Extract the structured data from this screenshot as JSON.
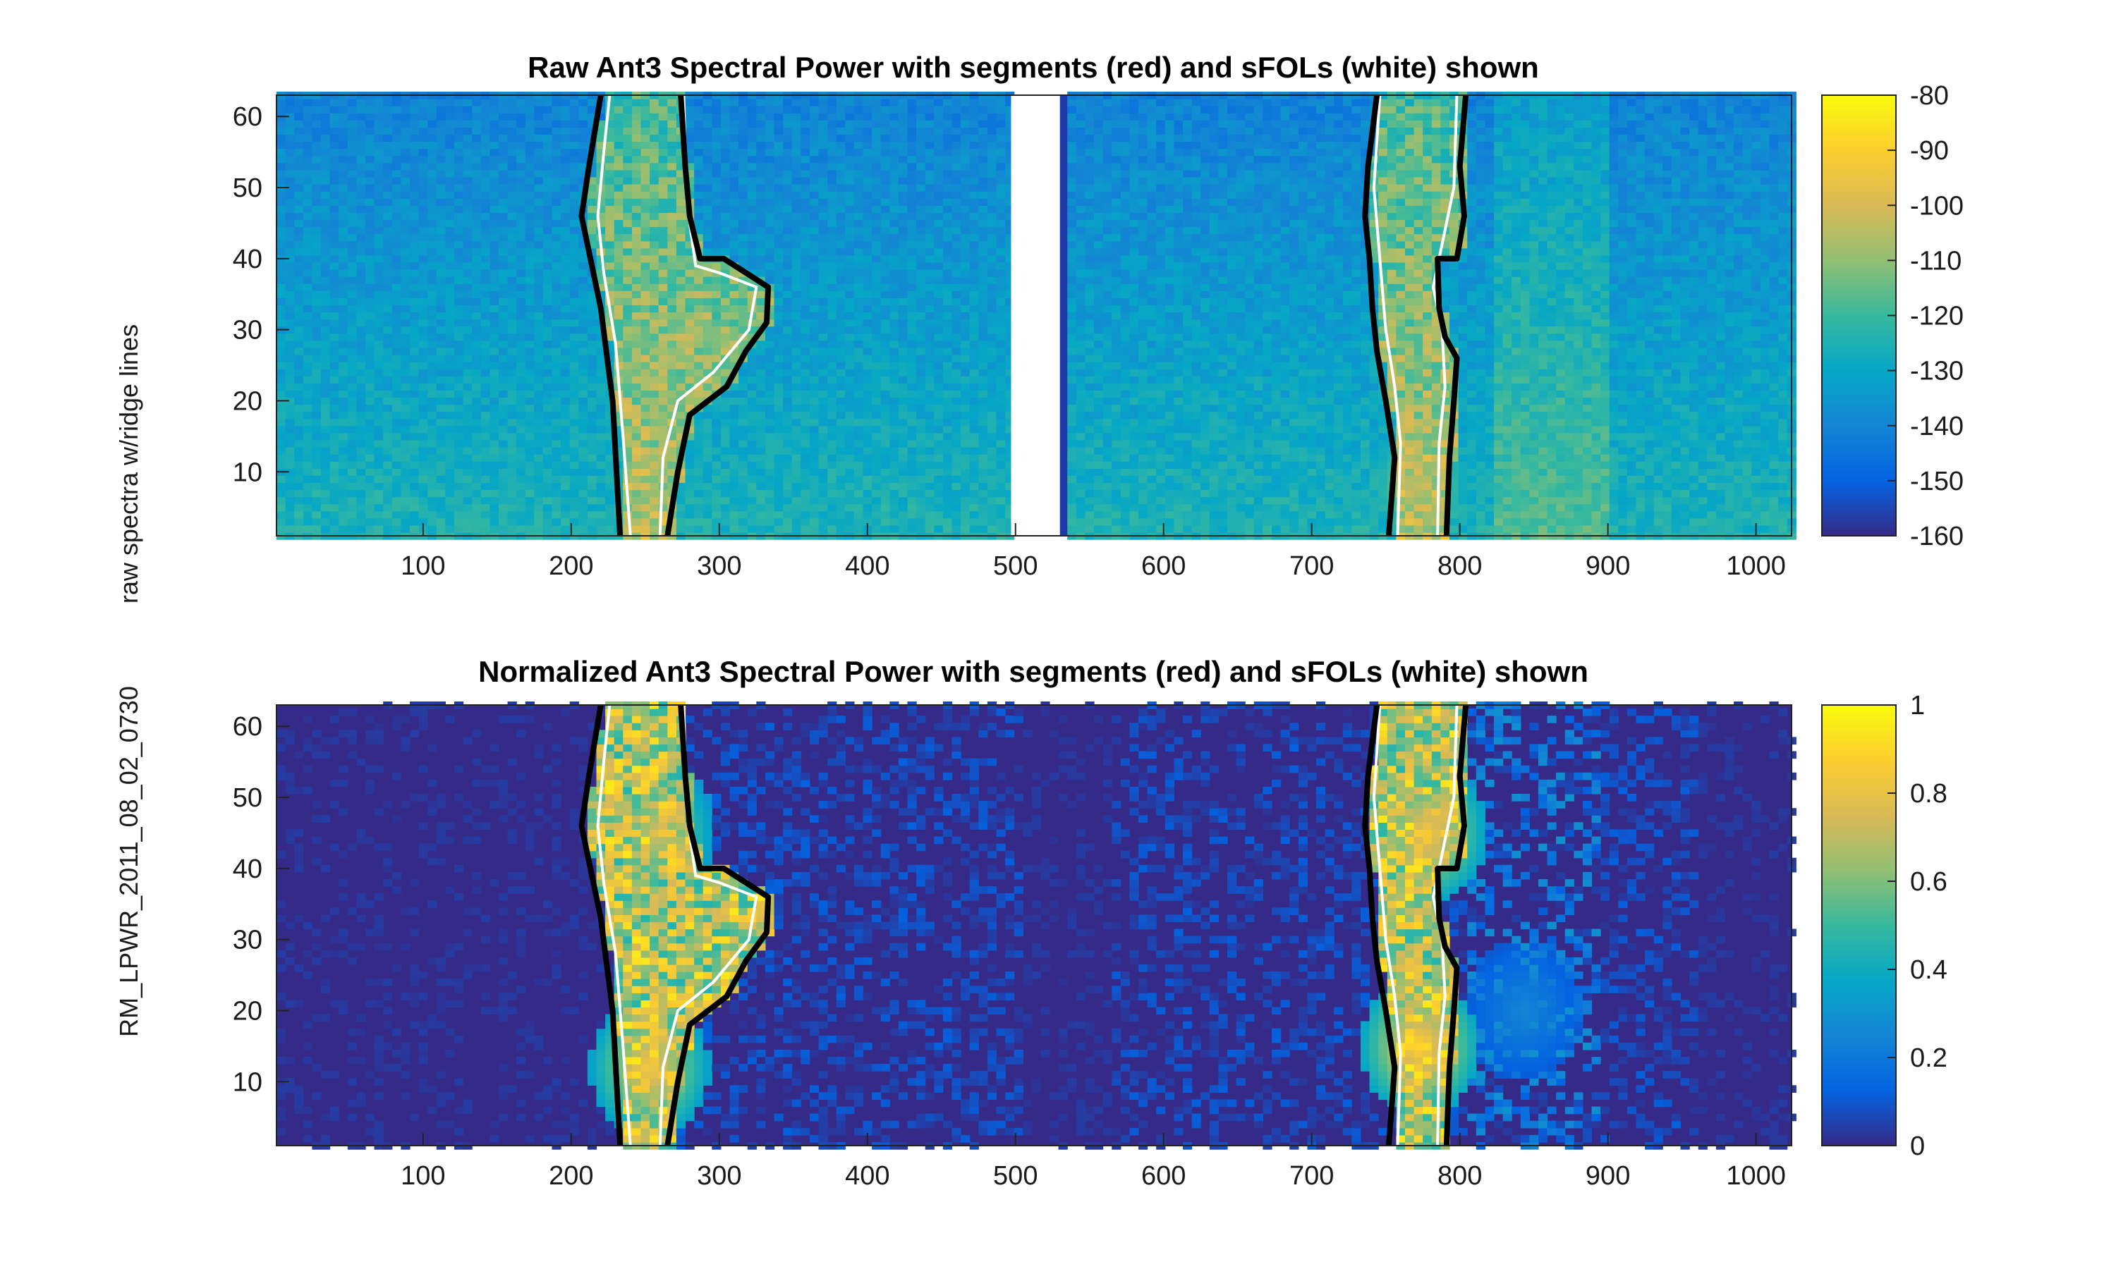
{
  "figure_ylabel": "RM_LPWR_2011_08_02_0730\nraw spectra w/ridge lines",
  "figure_ylabel_lines": [
    "RM_LPWR_2011_08_02_0730",
    "raw spectra w/ridge lines"
  ],
  "chart_data": [
    {
      "id": "raw",
      "type": "heatmap",
      "title": "Raw Ant3 Spectral Power with segments (red) and sFOLs (white) shown",
      "xlim": [
        1,
        1024
      ],
      "ylim": [
        1,
        63
      ],
      "xticks": [
        100,
        200,
        300,
        400,
        500,
        600,
        700,
        800,
        900,
        1000
      ],
      "yticks": [
        10,
        20,
        30,
        40,
        50,
        60
      ],
      "colormap": "parula",
      "colorbar": {
        "min": -160,
        "max": -80,
        "ticks": [
          -80,
          -90,
          -100,
          -110,
          -120,
          -130,
          -140,
          -150,
          -160
        ]
      },
      "gap_x": [
        497,
        530
      ],
      "segments": [
        {
          "left": [
            [
              233,
              1
            ],
            [
              228,
              20
            ],
            [
              220,
              33
            ],
            [
              213,
              40
            ],
            [
              207,
              46
            ],
            [
              212,
              53
            ],
            [
              220,
              63
            ]
          ],
          "right": [
            [
              265,
              1
            ],
            [
              272,
              10
            ],
            [
              280,
              18
            ],
            [
              305,
              22
            ],
            [
              318,
              27
            ],
            [
              332,
              31
            ],
            [
              333,
              36
            ],
            [
              318,
              38
            ],
            [
              303,
              40
            ],
            [
              287,
              40
            ],
            [
              280,
              46
            ],
            [
              277,
              53
            ],
            [
              274,
              63
            ]
          ]
        },
        {
          "left": [
            [
              752,
              1
            ],
            [
              756,
              12
            ],
            [
              750,
              20
            ],
            [
              744,
              27
            ],
            [
              741,
              33
            ],
            [
              739,
              40
            ],
            [
              736,
              46
            ],
            [
              738,
              53
            ],
            [
              744,
              63
            ]
          ],
          "right": [
            [
              791,
              1
            ],
            [
              793,
              12
            ],
            [
              796,
              20
            ],
            [
              798,
              26
            ],
            [
              790,
              29
            ],
            [
              786,
              33
            ],
            [
              785,
              40
            ],
            [
              798,
              40
            ],
            [
              803,
              46
            ],
            [
              800,
              53
            ],
            [
              804,
              63
            ]
          ]
        }
      ],
      "sfols": [
        {
          "points": [
            [
              240,
              1
            ],
            [
              235,
              15
            ],
            [
              230,
              28
            ],
            [
              222,
              38
            ],
            [
              218,
              46
            ],
            [
              222,
              55
            ],
            [
              226,
              63
            ]
          ]
        },
        {
          "points": [
            [
              260,
              1
            ],
            [
              262,
              12
            ],
            [
              272,
              20
            ],
            [
              296,
              24
            ],
            [
              320,
              30
            ],
            [
              325,
              36
            ],
            [
              300,
              38
            ],
            [
              284,
              39
            ],
            [
              278,
              48
            ],
            [
              276,
              63
            ]
          ]
        },
        {
          "points": [
            [
              758,
              1
            ],
            [
              760,
              14
            ],
            [
              756,
              22
            ],
            [
              750,
              30
            ],
            [
              746,
              40
            ],
            [
              742,
              50
            ],
            [
              746,
              63
            ]
          ]
        },
        {
          "points": [
            [
              785,
              1
            ],
            [
              786,
              14
            ],
            [
              790,
              22
            ],
            [
              788,
              30
            ],
            [
              782,
              36
            ],
            [
              788,
              42
            ],
            [
              796,
              50
            ],
            [
              798,
              63
            ]
          ]
        }
      ],
      "hotspots": [
        {
          "x": 248,
          "y": 8,
          "v": 0.58
        },
        {
          "x": 250,
          "y": 20,
          "v": 0.52
        },
        {
          "x": 770,
          "y": 8,
          "v": 0.72
        },
        {
          "x": 770,
          "y": 25,
          "v": 0.6
        },
        {
          "x": 775,
          "y": 45,
          "v": 0.5
        },
        {
          "x": 850,
          "y": 12,
          "v": 0.42
        }
      ]
    },
    {
      "id": "normalized",
      "type": "heatmap",
      "title": "Normalized Ant3 Spectral Power with segments (red) and sFOLs (white) shown",
      "xlim": [
        1,
        1024
      ],
      "ylim": [
        1,
        63
      ],
      "xticks": [
        100,
        200,
        300,
        400,
        500,
        600,
        700,
        800,
        900,
        1000
      ],
      "yticks": [
        10,
        20,
        30,
        40,
        50,
        60
      ],
      "colormap": "parula",
      "colorbar": {
        "min": 0,
        "max": 1,
        "ticks": [
          1,
          0.8,
          0.6,
          0.4,
          0.2,
          0
        ]
      },
      "segments": [
        {
          "left": [
            [
              233,
              1
            ],
            [
              228,
              20
            ],
            [
              220,
              33
            ],
            [
              213,
              40
            ],
            [
              207,
              46
            ],
            [
              212,
              53
            ],
            [
              220,
              63
            ]
          ],
          "right": [
            [
              265,
              1
            ],
            [
              272,
              10
            ],
            [
              280,
              18
            ],
            [
              305,
              22
            ],
            [
              318,
              27
            ],
            [
              332,
              31
            ],
            [
              333,
              36
            ],
            [
              318,
              38
            ],
            [
              303,
              40
            ],
            [
              287,
              40
            ],
            [
              280,
              46
            ],
            [
              277,
              53
            ],
            [
              274,
              63
            ]
          ]
        },
        {
          "left": [
            [
              752,
              1
            ],
            [
              756,
              12
            ],
            [
              750,
              20
            ],
            [
              744,
              27
            ],
            [
              741,
              33
            ],
            [
              739,
              40
            ],
            [
              736,
              46
            ],
            [
              738,
              53
            ],
            [
              744,
              63
            ]
          ],
          "right": [
            [
              791,
              1
            ],
            [
              793,
              12
            ],
            [
              796,
              20
            ],
            [
              798,
              26
            ],
            [
              790,
              29
            ],
            [
              786,
              33
            ],
            [
              785,
              40
            ],
            [
              798,
              40
            ],
            [
              803,
              46
            ],
            [
              800,
              53
            ],
            [
              804,
              63
            ]
          ]
        }
      ],
      "sfols": [
        {
          "points": [
            [
              240,
              1
            ],
            [
              235,
              15
            ],
            [
              230,
              28
            ],
            [
              222,
              38
            ],
            [
              218,
              46
            ],
            [
              222,
              55
            ],
            [
              226,
              63
            ]
          ]
        },
        {
          "points": [
            [
              260,
              1
            ],
            [
              262,
              12
            ],
            [
              272,
              20
            ],
            [
              296,
              24
            ],
            [
              320,
              30
            ],
            [
              325,
              36
            ],
            [
              300,
              38
            ],
            [
              284,
              39
            ],
            [
              278,
              48
            ],
            [
              276,
              63
            ]
          ]
        },
        {
          "points": [
            [
              758,
              1
            ],
            [
              760,
              14
            ],
            [
              756,
              22
            ],
            [
              750,
              30
            ],
            [
              746,
              40
            ],
            [
              742,
              50
            ],
            [
              746,
              63
            ]
          ]
        },
        {
          "points": [
            [
              785,
              1
            ],
            [
              786,
              14
            ],
            [
              790,
              22
            ],
            [
              788,
              30
            ],
            [
              782,
              36
            ],
            [
              788,
              42
            ],
            [
              796,
              50
            ],
            [
              798,
              63
            ]
          ]
        }
      ],
      "hotspots": [
        {
          "x": 250,
          "y": 12,
          "v": 0.85
        },
        {
          "x": 255,
          "y": 45,
          "v": 0.75
        },
        {
          "x": 770,
          "y": 15,
          "v": 0.9
        },
        {
          "x": 775,
          "y": 45,
          "v": 0.85
        },
        {
          "x": 840,
          "y": 20,
          "v": 0.25
        }
      ]
    }
  ]
}
